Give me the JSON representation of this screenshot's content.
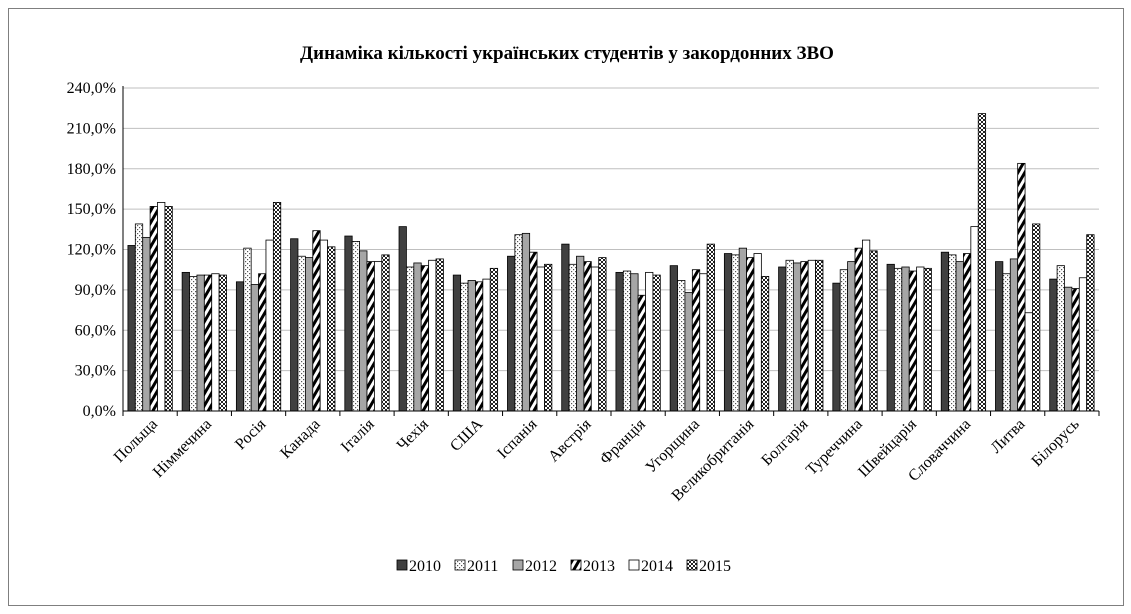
{
  "chart_data": {
    "type": "bar",
    "title": "Динаміка кількості українських студентів у закордонних ЗВО",
    "xlabel": "",
    "ylabel": "",
    "ylim": [
      0,
      240
    ],
    "y_ticks": [
      0,
      30,
      60,
      90,
      120,
      150,
      180,
      210,
      240
    ],
    "y_tick_labels": [
      "0,0%",
      "30,0%",
      "60,0%",
      "90,0%",
      "120,0%",
      "150,0%",
      "180,0%",
      "210,0%",
      "240,0%"
    ],
    "grid": true,
    "legend_position": "bottom",
    "categories": [
      "Польща",
      "Німмечина",
      "Росія",
      "Канада",
      "Італія",
      "Чехія",
      "США",
      "Іспанія",
      "Австрія",
      "Франція",
      "Угорщина",
      "Великобританія",
      "Болгарія",
      "Туреччина",
      "Швейцарія",
      "Словаччина",
      "Литва",
      "Білорусь"
    ],
    "series": [
      {
        "name": "2010",
        "pattern": "solid-dark",
        "values": [
          123,
          103,
          96,
          128,
          130,
          137,
          101,
          115,
          124,
          103,
          108,
          117,
          107,
          95,
          109,
          118,
          111,
          98
        ]
      },
      {
        "name": "2011",
        "pattern": "dotted-white",
        "values": [
          139,
          100,
          121,
          115,
          126,
          107,
          95,
          131,
          109,
          104,
          97,
          116,
          112,
          105,
          106,
          116,
          102,
          108
        ]
      },
      {
        "name": "2012",
        "pattern": "solid-gray",
        "values": [
          129,
          101,
          94,
          114,
          119,
          110,
          97,
          132,
          115,
          102,
          88,
          121,
          110,
          111,
          107,
          111,
          113,
          92
        ]
      },
      {
        "name": "2013",
        "pattern": "diagonal-hatch",
        "values": [
          152,
          101,
          102,
          134,
          111,
          108,
          96,
          118,
          111,
          86,
          105,
          114,
          111,
          121,
          104,
          117,
          184,
          91
        ]
      },
      {
        "name": "2014",
        "pattern": "white",
        "values": [
          155,
          102,
          127,
          127,
          111,
          112,
          98,
          107,
          107,
          103,
          102,
          117,
          112,
          127,
          107,
          137,
          73,
          99
        ]
      },
      {
        "name": "2015",
        "pattern": "checker",
        "values": [
          152,
          101,
          155,
          122,
          116,
          113,
          106,
          109,
          114,
          101,
          124,
          100,
          112,
          119,
          106,
          221,
          139,
          131
        ]
      }
    ]
  }
}
